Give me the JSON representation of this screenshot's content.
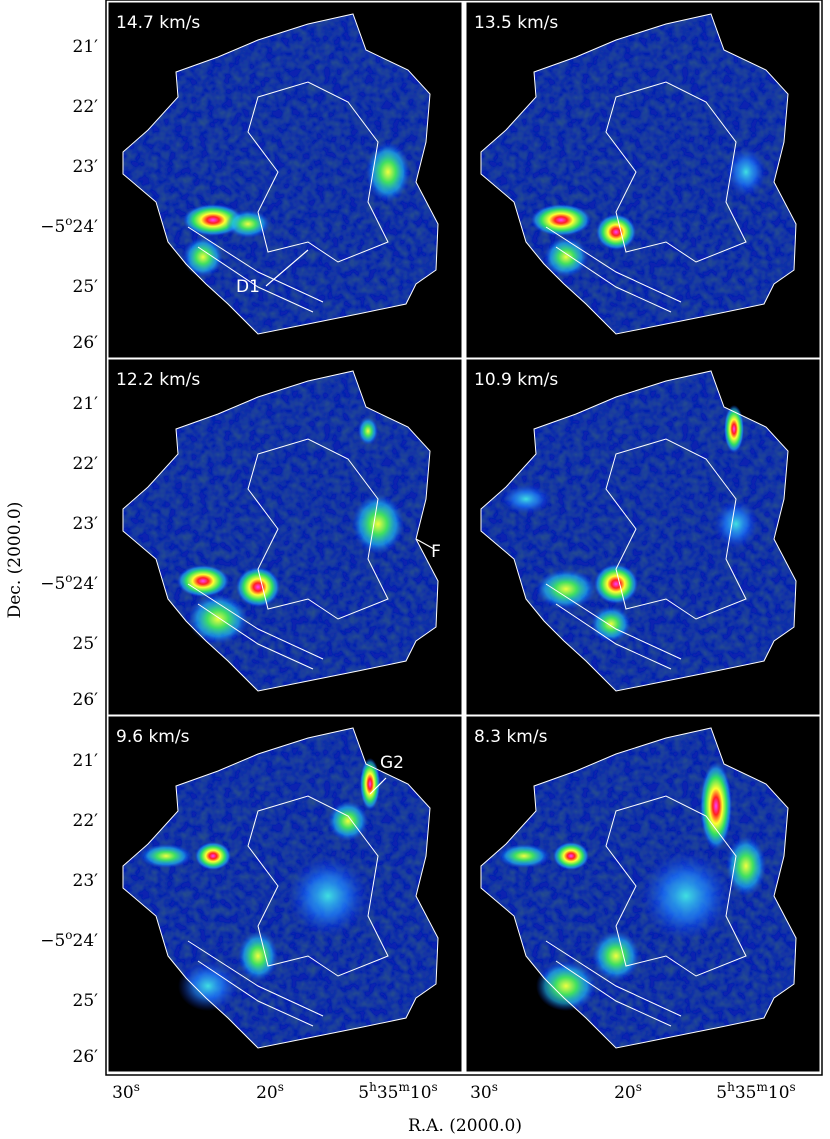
{
  "panels": [
    {
      "label": "14.7 km/s",
      "annotation": "D1"
    },
    {
      "label": "13.5 km/s"
    },
    {
      "label": "12.2 km/s",
      "annotation": "F"
    },
    {
      "label": "10.9 km/s"
    },
    {
      "label": "9.6 km/s",
      "annotation": "G2"
    },
    {
      "label": "8.3 km/s"
    }
  ],
  "dec_ticks": [
    [
      "21′"
    ],
    [
      "22′"
    ],
    [
      "23′"
    ],
    [
      "−5",
      "o",
      "24′"
    ],
    [
      "25′"
    ],
    [
      "26′"
    ]
  ],
  "ra_ticks": [
    [
      "30",
      "s"
    ],
    [
      "20",
      "s"
    ],
    [
      "5",
      "h",
      "35",
      "m",
      "10",
      "s"
    ]
  ],
  "x_label": "R.A. (2000.0)",
  "y_label": "Dec. (2000.0)"
}
